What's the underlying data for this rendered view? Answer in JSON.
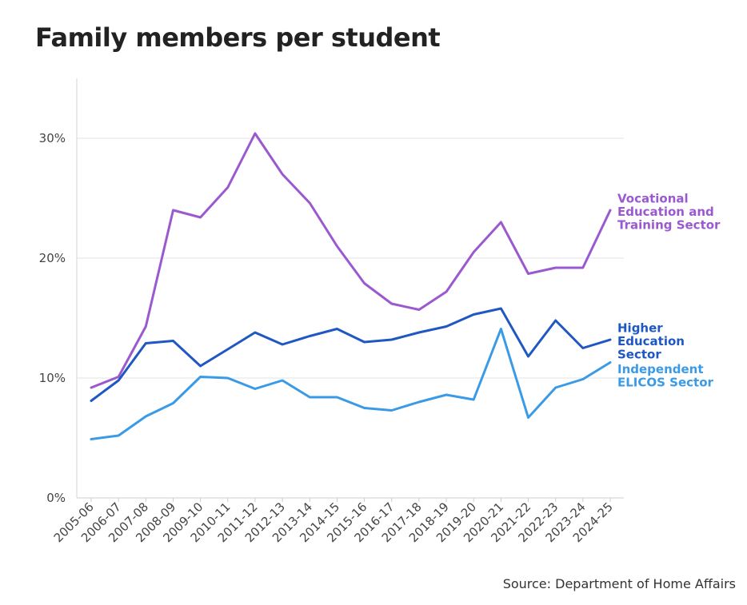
{
  "title": "Family members per student",
  "source": "Source: Department of Home Affairs",
  "chart_data": {
    "type": "line",
    "title": "Family members per student",
    "xlabel": "",
    "ylabel": "",
    "ylim": [
      0,
      35
    ],
    "yticks": [
      0,
      10,
      20,
      30
    ],
    "ytick_labels": [
      "0%",
      "10%",
      "20%",
      "30%"
    ],
    "grid": true,
    "categories": [
      "2005-06",
      "2006-07",
      "2007-08",
      "2008-09",
      "2009-10",
      "2010-11",
      "2011-12",
      "2012-13",
      "2013-14",
      "2014-15",
      "2015-16",
      "2016-17",
      "2017-18",
      "2018-19",
      "2019-20",
      "2020-21",
      "2021-22",
      "2022-23",
      "2023-24",
      "2024-25"
    ],
    "series": [
      {
        "name": "Vocational Education and Training Sector",
        "label_lines": [
          "Vocational",
          "Education and",
          "Training Sector"
        ],
        "color": "#9b59d0",
        "values": [
          9.2,
          10.1,
          14.3,
          24.0,
          23.4,
          25.9,
          30.4,
          27.0,
          24.6,
          21.0,
          17.9,
          16.2,
          15.7,
          17.2,
          20.5,
          23.0,
          18.7,
          19.2,
          19.2,
          24.0
        ]
      },
      {
        "name": "Higher Education Sector",
        "label_lines": [
          "Higher",
          "Education",
          "Sector"
        ],
        "color": "#1f57c3",
        "values": [
          8.1,
          9.8,
          12.9,
          13.1,
          11.0,
          12.4,
          13.8,
          12.8,
          13.5,
          14.1,
          13.0,
          13.2,
          13.8,
          14.3,
          15.3,
          15.8,
          11.8,
          14.8,
          12.5,
          13.2
        ]
      },
      {
        "name": "Independent ELICOS Sector",
        "label_lines": [
          "Independent",
          "ELICOS Sector"
        ],
        "color": "#3a9ae6",
        "values": [
          4.9,
          5.2,
          6.8,
          7.9,
          10.1,
          10.0,
          9.1,
          9.8,
          8.4,
          8.4,
          7.5,
          7.3,
          8.0,
          8.6,
          8.2,
          14.1,
          6.7,
          9.2,
          9.9,
          11.3
        ]
      }
    ]
  }
}
